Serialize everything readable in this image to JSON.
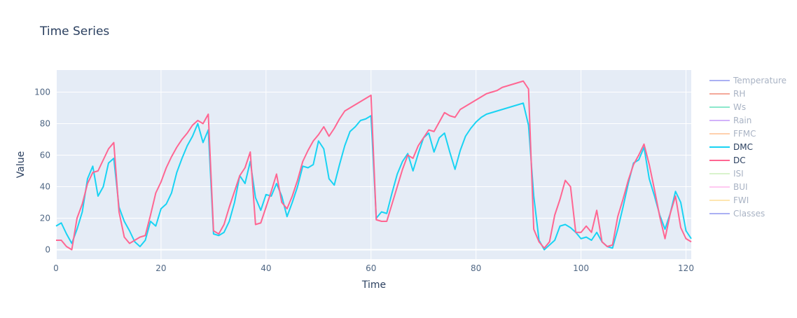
{
  "chart_data": {
    "type": "line",
    "title": "Time Series",
    "xlabel": "Time",
    "ylabel": "Value",
    "xlim": [
      0,
      121
    ],
    "ylim": [
      -6,
      114
    ],
    "x_ticks": [
      0,
      20,
      40,
      60,
      80,
      100,
      120
    ],
    "y_ticks": [
      0,
      20,
      40,
      60,
      80,
      100
    ],
    "grid": true,
    "legend_placement": "right",
    "legend": [
      {
        "name": "Temperature",
        "color": "#aab0f3",
        "visible": false
      },
      {
        "name": "RH",
        "color": "#f4a99a",
        "visible": false
      },
      {
        "name": "Ws",
        "color": "#8ce8cc",
        "visible": false
      },
      {
        "name": "Rain",
        "color": "#d2b2fa",
        "visible": false
      },
      {
        "name": "FFMC",
        "color": "#ffd0ad",
        "visible": false
      },
      {
        "name": "DMC",
        "color": "#19d3f3",
        "visible": true
      },
      {
        "name": "DC",
        "color": "#ff6692",
        "visible": true
      },
      {
        "name": "ISI",
        "color": "#d9f3cc",
        "visible": false
      },
      {
        "name": "BUI",
        "color": "#ffc9f1",
        "visible": false
      },
      {
        "name": "FWI",
        "color": "#fee6b1",
        "visible": false
      },
      {
        "name": "Classes",
        "color": "#aab0f3",
        "visible": false
      }
    ],
    "series": [
      {
        "name": "DMC",
        "color": "#19d3f3",
        "points": [
          [
            0,
            15
          ],
          [
            1,
            17
          ],
          [
            2,
            10
          ],
          [
            3,
            4
          ],
          [
            4,
            13
          ],
          [
            5,
            24
          ],
          [
            6,
            45
          ],
          [
            7,
            53
          ],
          [
            8,
            34
          ],
          [
            9,
            40
          ],
          [
            10,
            55
          ],
          [
            11,
            58
          ],
          [
            12,
            27
          ],
          [
            13,
            18
          ],
          [
            14,
            12
          ],
          [
            15,
            5
          ],
          [
            16,
            2
          ],
          [
            17,
            6
          ],
          [
            18,
            18
          ],
          [
            19,
            15
          ],
          [
            20,
            26
          ],
          [
            21,
            29
          ],
          [
            22,
            36
          ],
          [
            23,
            49
          ],
          [
            24,
            58
          ],
          [
            25,
            66
          ],
          [
            26,
            72
          ],
          [
            27,
            80
          ],
          [
            28,
            68
          ],
          [
            29,
            76
          ],
          [
            30,
            10
          ],
          [
            31,
            9
          ],
          [
            32,
            11
          ],
          [
            33,
            18
          ],
          [
            34,
            30
          ],
          [
            35,
            47
          ],
          [
            36,
            42
          ],
          [
            37,
            56
          ],
          [
            38,
            33
          ],
          [
            39,
            25
          ],
          [
            40,
            35
          ],
          [
            41,
            34
          ],
          [
            42,
            42
          ],
          [
            43,
            34
          ],
          [
            44,
            21
          ],
          [
            45,
            30
          ],
          [
            46,
            40
          ],
          [
            47,
            53
          ],
          [
            48,
            52
          ],
          [
            49,
            54
          ],
          [
            50,
            69
          ],
          [
            51,
            64
          ],
          [
            52,
            45
          ],
          [
            53,
            41
          ],
          [
            54,
            54
          ],
          [
            55,
            66
          ],
          [
            56,
            75
          ],
          [
            57,
            78
          ],
          [
            58,
            82
          ],
          [
            59,
            83
          ],
          [
            60,
            85
          ],
          [
            61,
            20
          ],
          [
            62,
            24
          ],
          [
            63,
            23
          ],
          [
            64,
            36
          ],
          [
            65,
            48
          ],
          [
            66,
            56
          ],
          [
            67,
            61
          ],
          [
            68,
            50
          ],
          [
            69,
            61
          ],
          [
            70,
            71
          ],
          [
            71,
            74
          ],
          [
            72,
            62
          ],
          [
            73,
            71
          ],
          [
            74,
            74
          ],
          [
            75,
            62
          ],
          [
            76,
            51
          ],
          [
            77,
            63
          ],
          [
            78,
            72
          ],
          [
            79,
            77
          ],
          [
            80,
            81
          ],
          [
            81,
            84
          ],
          [
            82,
            86
          ],
          [
            89,
            93
          ],
          [
            90,
            79
          ],
          [
            91,
            34
          ],
          [
            92,
            6
          ],
          [
            93,
            0
          ],
          [
            94,
            3
          ],
          [
            95,
            6
          ],
          [
            96,
            15
          ],
          [
            97,
            16
          ],
          [
            98,
            14
          ],
          [
            99,
            11
          ],
          [
            100,
            7
          ],
          [
            101,
            8
          ],
          [
            102,
            6
          ],
          [
            103,
            11
          ],
          [
            104,
            5
          ],
          [
            105,
            2
          ],
          [
            106,
            1
          ],
          [
            107,
            13
          ],
          [
            108,
            27
          ],
          [
            109,
            42
          ],
          [
            110,
            55
          ],
          [
            111,
            57
          ],
          [
            112,
            65
          ],
          [
            113,
            45
          ],
          [
            114,
            34
          ],
          [
            115,
            22
          ],
          [
            116,
            13
          ],
          [
            117,
            23
          ],
          [
            118,
            37
          ],
          [
            119,
            30
          ],
          [
            120,
            12
          ],
          [
            121,
            7
          ]
        ]
      },
      {
        "name": "DC",
        "color": "#ff6692",
        "points": [
          [
            0,
            6
          ],
          [
            1,
            6
          ],
          [
            2,
            2
          ],
          [
            3,
            0
          ],
          [
            4,
            20
          ],
          [
            5,
            29
          ],
          [
            6,
            42
          ],
          [
            7,
            49
          ],
          [
            8,
            50
          ],
          [
            9,
            57
          ],
          [
            10,
            64
          ],
          [
            11,
            68
          ],
          [
            12,
            24
          ],
          [
            13,
            8
          ],
          [
            14,
            4
          ],
          [
            15,
            6
          ],
          [
            16,
            8
          ],
          [
            17,
            9
          ],
          [
            18,
            22
          ],
          [
            19,
            36
          ],
          [
            20,
            43
          ],
          [
            21,
            52
          ],
          [
            22,
            59
          ],
          [
            23,
            65
          ],
          [
            24,
            70
          ],
          [
            25,
            74
          ],
          [
            26,
            79
          ],
          [
            27,
            82
          ],
          [
            28,
            80
          ],
          [
            29,
            86
          ],
          [
            30,
            12
          ],
          [
            31,
            10
          ],
          [
            32,
            16
          ],
          [
            33,
            27
          ],
          [
            34,
            37
          ],
          [
            35,
            47
          ],
          [
            36,
            52
          ],
          [
            37,
            62
          ],
          [
            38,
            16
          ],
          [
            39,
            17
          ],
          [
            40,
            27
          ],
          [
            41,
            37
          ],
          [
            42,
            48
          ],
          [
            43,
            30
          ],
          [
            44,
            26
          ],
          [
            45,
            34
          ],
          [
            46,
            44
          ],
          [
            47,
            56
          ],
          [
            48,
            63
          ],
          [
            49,
            69
          ],
          [
            50,
            73
          ],
          [
            51,
            78
          ],
          [
            52,
            72
          ],
          [
            53,
            77
          ],
          [
            54,
            83
          ],
          [
            55,
            88
          ],
          [
            60,
            98
          ],
          [
            61,
            19
          ],
          [
            62,
            18
          ],
          [
            63,
            18
          ],
          [
            64,
            29
          ],
          [
            65,
            40
          ],
          [
            66,
            51
          ],
          [
            67,
            60
          ],
          [
            68,
            58
          ],
          [
            69,
            66
          ],
          [
            70,
            71
          ],
          [
            71,
            76
          ],
          [
            72,
            75
          ],
          [
            73,
            81
          ],
          [
            74,
            87
          ],
          [
            75,
            85
          ],
          [
            76,
            84
          ],
          [
            77,
            89
          ],
          [
            82,
            99
          ],
          [
            83,
            100
          ],
          [
            84,
            101
          ],
          [
            85,
            103
          ],
          [
            89,
            107
          ],
          [
            90,
            102
          ],
          [
            91,
            13
          ],
          [
            92,
            5
          ],
          [
            93,
            1
          ],
          [
            94,
            5
          ],
          [
            95,
            22
          ],
          [
            96,
            32
          ],
          [
            97,
            44
          ],
          [
            98,
            40
          ],
          [
            99,
            11
          ],
          [
            100,
            11
          ],
          [
            101,
            15
          ],
          [
            102,
            11
          ],
          [
            103,
            25
          ],
          [
            104,
            5
          ],
          [
            105,
            2
          ],
          [
            106,
            3
          ],
          [
            107,
            21
          ],
          [
            108,
            32
          ],
          [
            109,
            44
          ],
          [
            110,
            54
          ],
          [
            111,
            60
          ],
          [
            112,
            67
          ],
          [
            113,
            54
          ],
          [
            114,
            38
          ],
          [
            115,
            21
          ],
          [
            116,
            7
          ],
          [
            117,
            23
          ],
          [
            118,
            34
          ],
          [
            119,
            14
          ],
          [
            120,
            7
          ],
          [
            121,
            5
          ]
        ]
      }
    ]
  }
}
